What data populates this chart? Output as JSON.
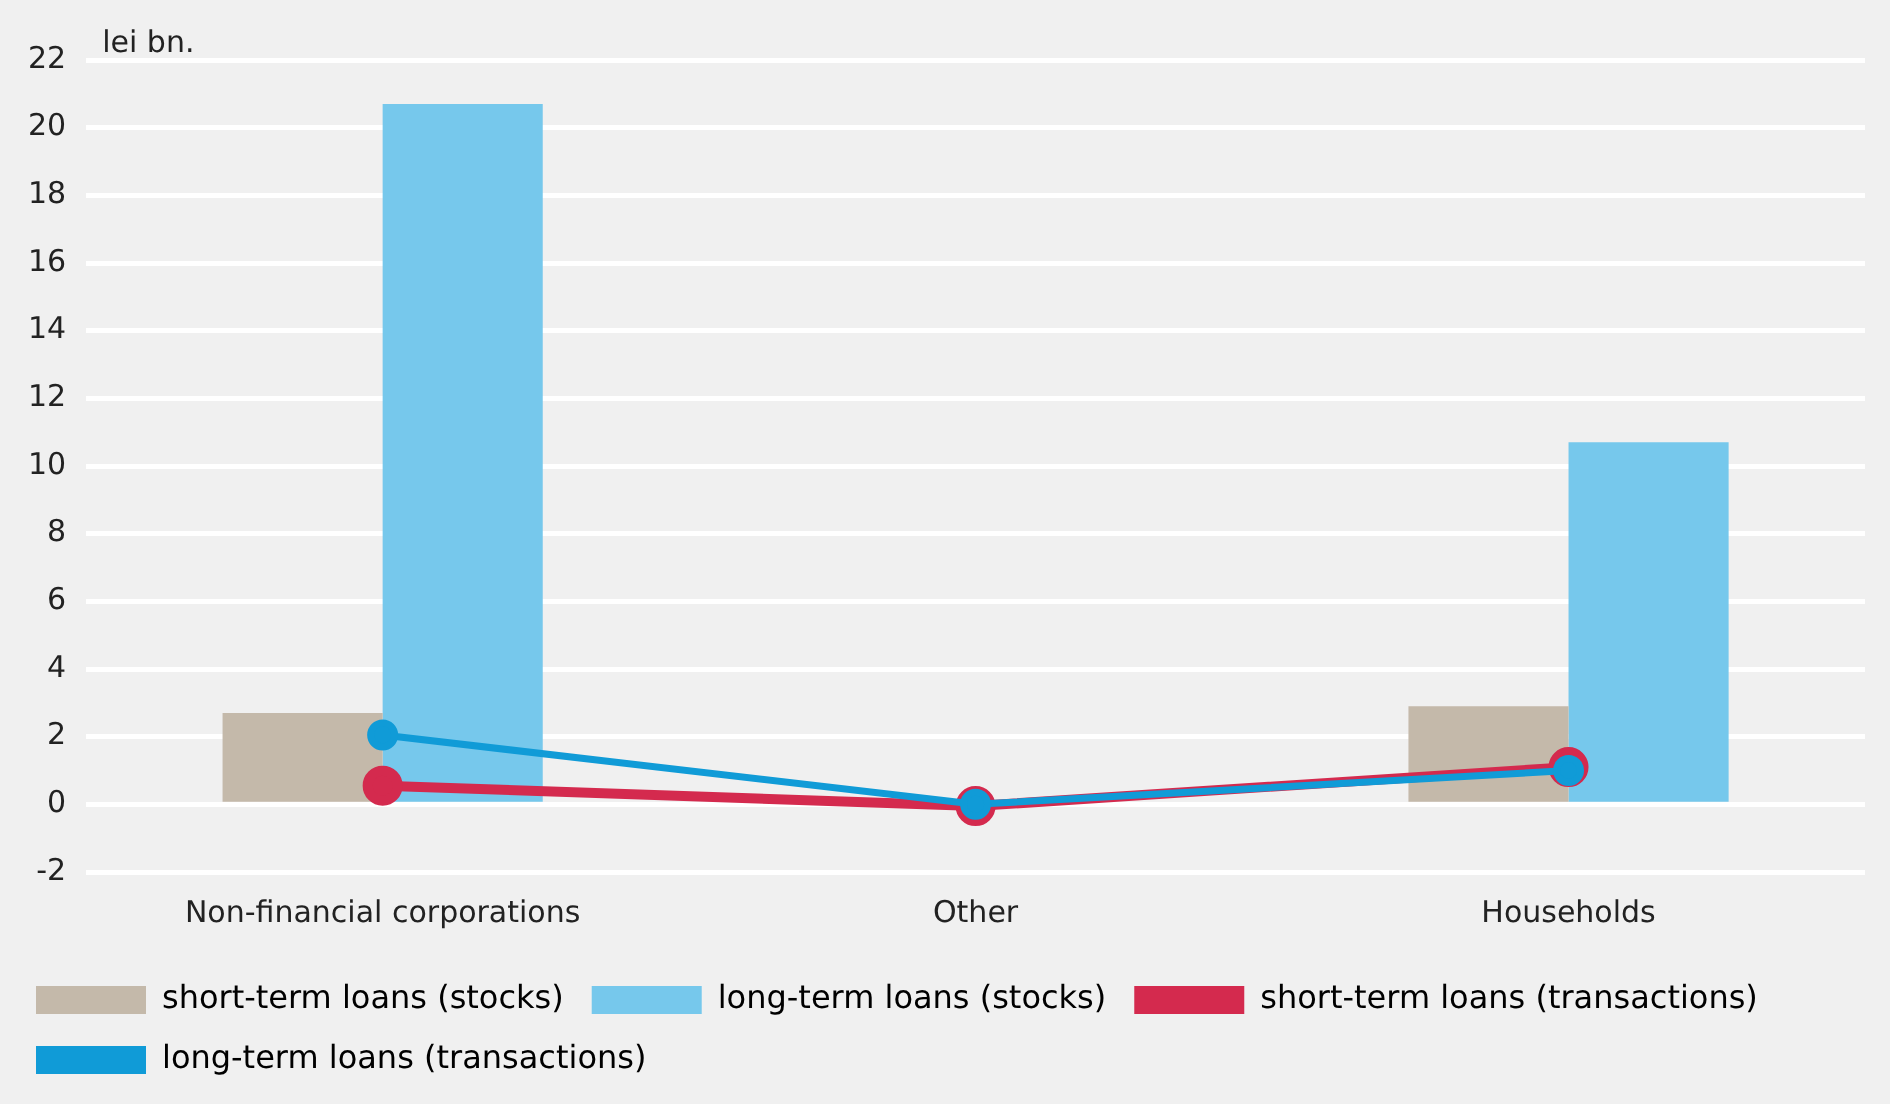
{
  "chart_data": {
    "type": "bar",
    "ylabel": "lei bn.",
    "categories": [
      "Non-financial corporations",
      "Other",
      "Households"
    ],
    "series": [
      {
        "name": "short-term loans (stocks)",
        "color": "#c4b9aa",
        "values": [
          2.7,
          0,
          2.9
        ]
      },
      {
        "name": "long-term loans (stocks)",
        "color": "#76c8ec",
        "values": [
          20.7,
          0,
          10.7
        ]
      },
      {
        "name": "short-term loans (transactions)",
        "type": "line",
        "color": "#d42a4e",
        "values": [
          0.55,
          -0.05,
          1.1
        ]
      },
      {
        "name": "long-term loans (transactions)",
        "type": "line",
        "color": "#109bd7",
        "values": [
          2.05,
          0,
          1.0
        ]
      }
    ],
    "ylim": [
      -2,
      22
    ],
    "yticks": [
      -2,
      0,
      2,
      4,
      6,
      8,
      10,
      12,
      14,
      16,
      18,
      20,
      22
    ],
    "grid": "y",
    "legend": "bottom",
    "marker": "circle"
  }
}
